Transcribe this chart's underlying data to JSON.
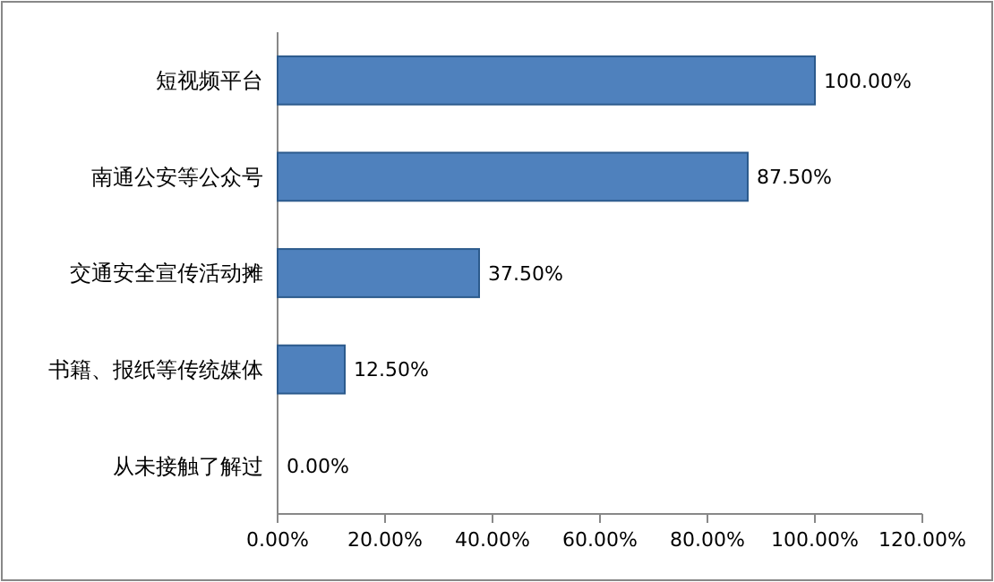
{
  "chart_data": {
    "type": "bar",
    "orientation": "horizontal",
    "categories": [
      "短视频平台",
      "南通公安等公众号",
      "交通安全宣传活动摊",
      "书籍、报纸等传统媒体",
      "从未接触了解过"
    ],
    "values": [
      100,
      87.5,
      37.5,
      12.5,
      0
    ],
    "value_labels": [
      "100.00%",
      "87.50%",
      "37.50%",
      "12.50%",
      "0.00%"
    ],
    "color": "#4f81bd",
    "xlim": [
      0,
      120
    ],
    "xticks": [
      {
        "value": 0,
        "label": "0.00%"
      },
      {
        "value": 20,
        "label": "20.00%"
      },
      {
        "value": 40,
        "label": "40.00%"
      },
      {
        "value": 60,
        "label": "60.00%"
      },
      {
        "value": 80,
        "label": "80.00%"
      },
      {
        "value": 100,
        "label": "100.00%"
      },
      {
        "value": 120,
        "label": "120.00%"
      }
    ],
    "grid": false
  }
}
